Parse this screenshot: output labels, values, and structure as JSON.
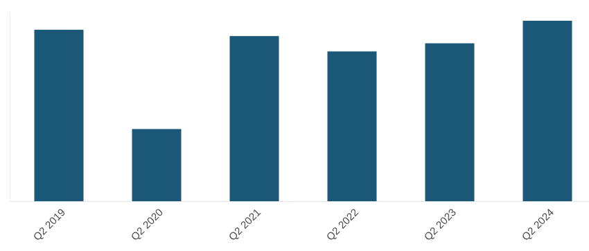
{
  "chart_data": {
    "type": "bar",
    "categories": [
      "Q2 2019",
      "Q2 2020",
      "Q2 2021",
      "Q2 2022",
      "Q2 2023",
      "Q2 2024"
    ],
    "values": [
      95,
      40,
      91.5,
      83,
      87.5,
      100
    ],
    "title": "",
    "xlabel": "",
    "ylabel": "",
    "ylim": [
      0,
      100
    ],
    "grid": false,
    "legend": "none",
    "colors": {
      "bar": "#1b5777",
      "axis": "#e6e6e6",
      "plot_border": "#f0f0f0",
      "tick_text": "#4a4a4a"
    }
  }
}
